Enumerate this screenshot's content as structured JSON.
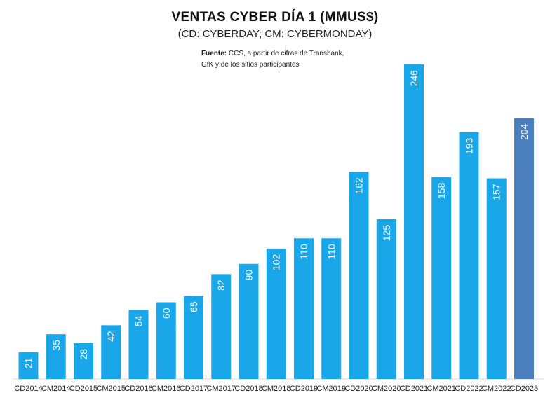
{
  "chart_data": {
    "type": "bar",
    "title": "VENTAS CYBER DÍA 1 (MMUS$)",
    "subtitle": "(CD: CYBERDAY; CM: CYBERMONDAY)",
    "source_label": "Fuente:",
    "source_line1": "CCS, a partir de cifras de Transbank,",
    "source_line2": "GfK y de los sitios participantes",
    "xlabel": "",
    "ylabel": "",
    "ylim": [
      0,
      250
    ],
    "categories": [
      "CD2014",
      "CM2014",
      "CD2015",
      "CM2015",
      "CD2016",
      "CM2016",
      "CD2017",
      "CM2017",
      "CD2018",
      "CM2018",
      "CD2019",
      "CM2019",
      "CD2020",
      "CM2020",
      "CD2021",
      "CM2021",
      "CD2022",
      "CM2022",
      "CD2023"
    ],
    "values": [
      21,
      35,
      28,
      42,
      54,
      60,
      65,
      82,
      90,
      102,
      110,
      110,
      162,
      125,
      246,
      158,
      193,
      157,
      204
    ],
    "colors": {
      "default": "#1aa7ea",
      "highlight": "#4b7fbe",
      "highlight_category": "CD2023"
    }
  }
}
